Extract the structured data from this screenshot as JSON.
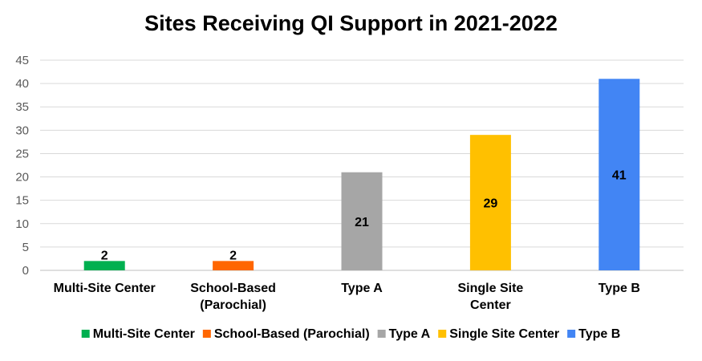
{
  "chart_data": {
    "type": "bar",
    "title": "Sites Receiving QI Support in 2021-2022",
    "xlabel": "",
    "ylabel": "",
    "categories": [
      [
        "Multi-Site Center"
      ],
      [
        "School-Based",
        "(Parochial)"
      ],
      [
        "Type A"
      ],
      [
        "Single Site",
        "Center"
      ],
      [
        "Type B"
      ]
    ],
    "values": [
      2,
      2,
      21,
      29,
      41
    ],
    "colors": [
      "#00B050",
      "#FF6600",
      "#A6A6A6",
      "#FFC000",
      "#4285F4"
    ],
    "legend": [
      "Multi-Site Center",
      "School-Based (Parochial)",
      "Type A",
      "Single Site Center",
      "Type B"
    ],
    "legend_position": "bottom",
    "ylim": [
      0,
      45
    ],
    "yticks": [
      0,
      5,
      10,
      15,
      20,
      25,
      30,
      35,
      40,
      45
    ],
    "grid": true
  }
}
